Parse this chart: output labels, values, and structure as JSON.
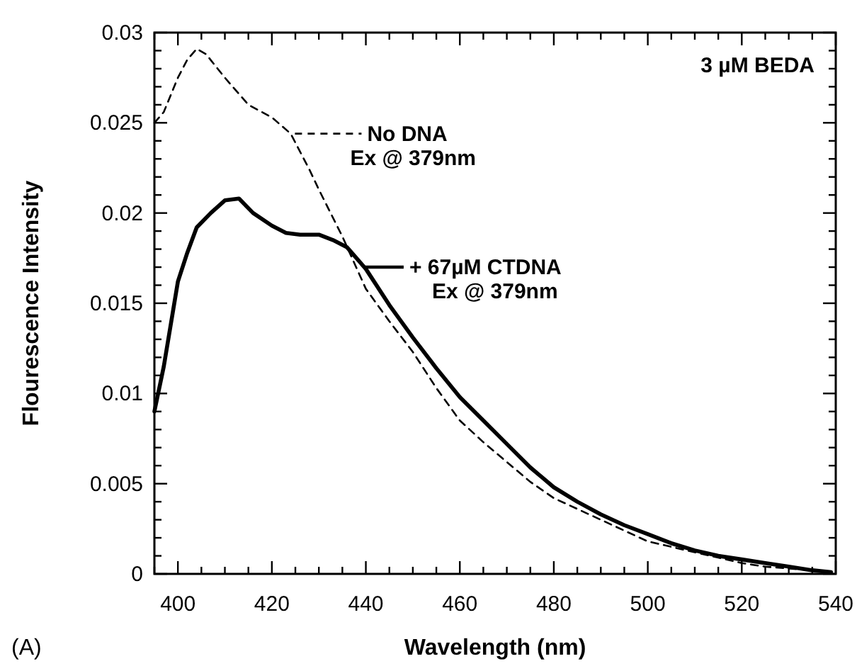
{
  "chart_data": {
    "type": "line",
    "xlabel": "Wavelength (nm)",
    "ylabel": "Flourescence Intensity",
    "xlim": [
      395,
      540
    ],
    "xticks": [
      {
        "value": 395,
        "label": null
      },
      400,
      {
        "value": 405,
        "label": null
      },
      {
        "value": 410,
        "label": null
      },
      {
        "value": 415,
        "label": null
      },
      420,
      {
        "value": 425,
        "label": null
      },
      {
        "value": 430,
        "label": null
      },
      {
        "value": 435,
        "label": null
      },
      440,
      {
        "value": 445,
        "label": null
      },
      {
        "value": 450,
        "label": null
      },
      {
        "value": 455,
        "label": null
      },
      460,
      {
        "value": 465,
        "label": null
      },
      {
        "value": 470,
        "label": null
      },
      {
        "value": 475,
        "label": null
      },
      480,
      {
        "value": 485,
        "label": null
      },
      {
        "value": 490,
        "label": null
      },
      {
        "value": 495,
        "label": null
      },
      500,
      {
        "value": 505,
        "label": null
      },
      {
        "value": 510,
        "label": null
      },
      {
        "value": 515,
        "label": null
      },
      520,
      {
        "value": 525,
        "label": null
      },
      {
        "value": 530,
        "label": null
      },
      {
        "value": 535,
        "label": null
      },
      540
    ],
    "ylim": [
      0,
      0.03
    ],
    "yticks": [
      0,
      {
        "value": 0.001,
        "label": null
      },
      {
        "value": 0.002,
        "label": null
      },
      {
        "value": 0.003,
        "label": null
      },
      {
        "value": 0.004,
        "label": null
      },
      0.005,
      {
        "value": 0.006,
        "label": null
      },
      {
        "value": 0.007,
        "label": null
      },
      {
        "value": 0.008,
        "label": null
      },
      {
        "value": 0.009,
        "label": null
      },
      0.01,
      {
        "value": 0.011,
        "label": null
      },
      {
        "value": 0.012,
        "label": null
      },
      {
        "value": 0.013,
        "label": null
      },
      {
        "value": 0.014,
        "label": null
      },
      0.015,
      {
        "value": 0.016,
        "label": null
      },
      {
        "value": 0.017,
        "label": null
      },
      {
        "value": 0.018,
        "label": null
      },
      {
        "value": 0.019,
        "label": null
      },
      0.02,
      {
        "value": 0.021,
        "label": null
      },
      {
        "value": 0.022,
        "label": null
      },
      {
        "value": 0.023,
        "label": null
      },
      {
        "value": 0.024,
        "label": null
      },
      0.025,
      {
        "value": 0.026,
        "label": null
      },
      {
        "value": 0.027,
        "label": null
      },
      {
        "value": 0.028,
        "label": null
      },
      {
        "value": 0.029,
        "label": null
      },
      0.03
    ],
    "grid": false,
    "legend": "top",
    "series": [
      {
        "name": "No DNA",
        "color": "#000000",
        "line_style": "dashed",
        "x": [
          395,
          397,
          400,
          402,
          404,
          406,
          410,
          415,
          420,
          424,
          428,
          430,
          435,
          440,
          445,
          450,
          455,
          460,
          465,
          470,
          475,
          480,
          485,
          490,
          495,
          500,
          505,
          510,
          515,
          520,
          525,
          530,
          535,
          539
        ],
        "values": [
          0.025,
          0.0256,
          0.0275,
          0.0285,
          0.0291,
          0.0288,
          0.0275,
          0.026,
          0.0253,
          0.0244,
          0.0224,
          0.0213,
          0.0187,
          0.0158,
          0.014,
          0.0123,
          0.0103,
          0.0085,
          0.0073,
          0.0062,
          0.0051,
          0.0042,
          0.0036,
          0.003,
          0.0024,
          0.0018,
          0.0015,
          0.0012,
          0.0009,
          0.0006,
          0.0004,
          0.0003,
          0.0002,
          0.0001
        ]
      },
      {
        "name": "+ 67µM CTDNA",
        "color": "#000000",
        "line_style": "solid",
        "x": [
          395,
          397,
          400,
          402,
          404,
          407,
          410,
          413,
          416,
          420,
          423,
          426,
          430,
          433,
          436,
          440,
          445,
          450,
          455,
          460,
          465,
          470,
          475,
          480,
          485,
          490,
          495,
          500,
          505,
          510,
          515,
          520,
          525,
          530,
          535,
          539
        ],
        "values": [
          0.009,
          0.0115,
          0.0162,
          0.0178,
          0.0192,
          0.02,
          0.0207,
          0.0208,
          0.02,
          0.0193,
          0.0189,
          0.0188,
          0.0188,
          0.0185,
          0.0181,
          0.0169,
          0.0149,
          0.0131,
          0.0114,
          0.0098,
          0.0085,
          0.0072,
          0.0059,
          0.0048,
          0.004,
          0.0033,
          0.0027,
          0.0022,
          0.0017,
          0.0013,
          0.001,
          0.0008,
          0.0006,
          0.0004,
          0.0002,
          0.0001
        ]
      }
    ],
    "annotations": [
      "Ex @ 379nm",
      "Ex @ 379nm",
      "3 µM BEDA",
      "(A)"
    ]
  }
}
